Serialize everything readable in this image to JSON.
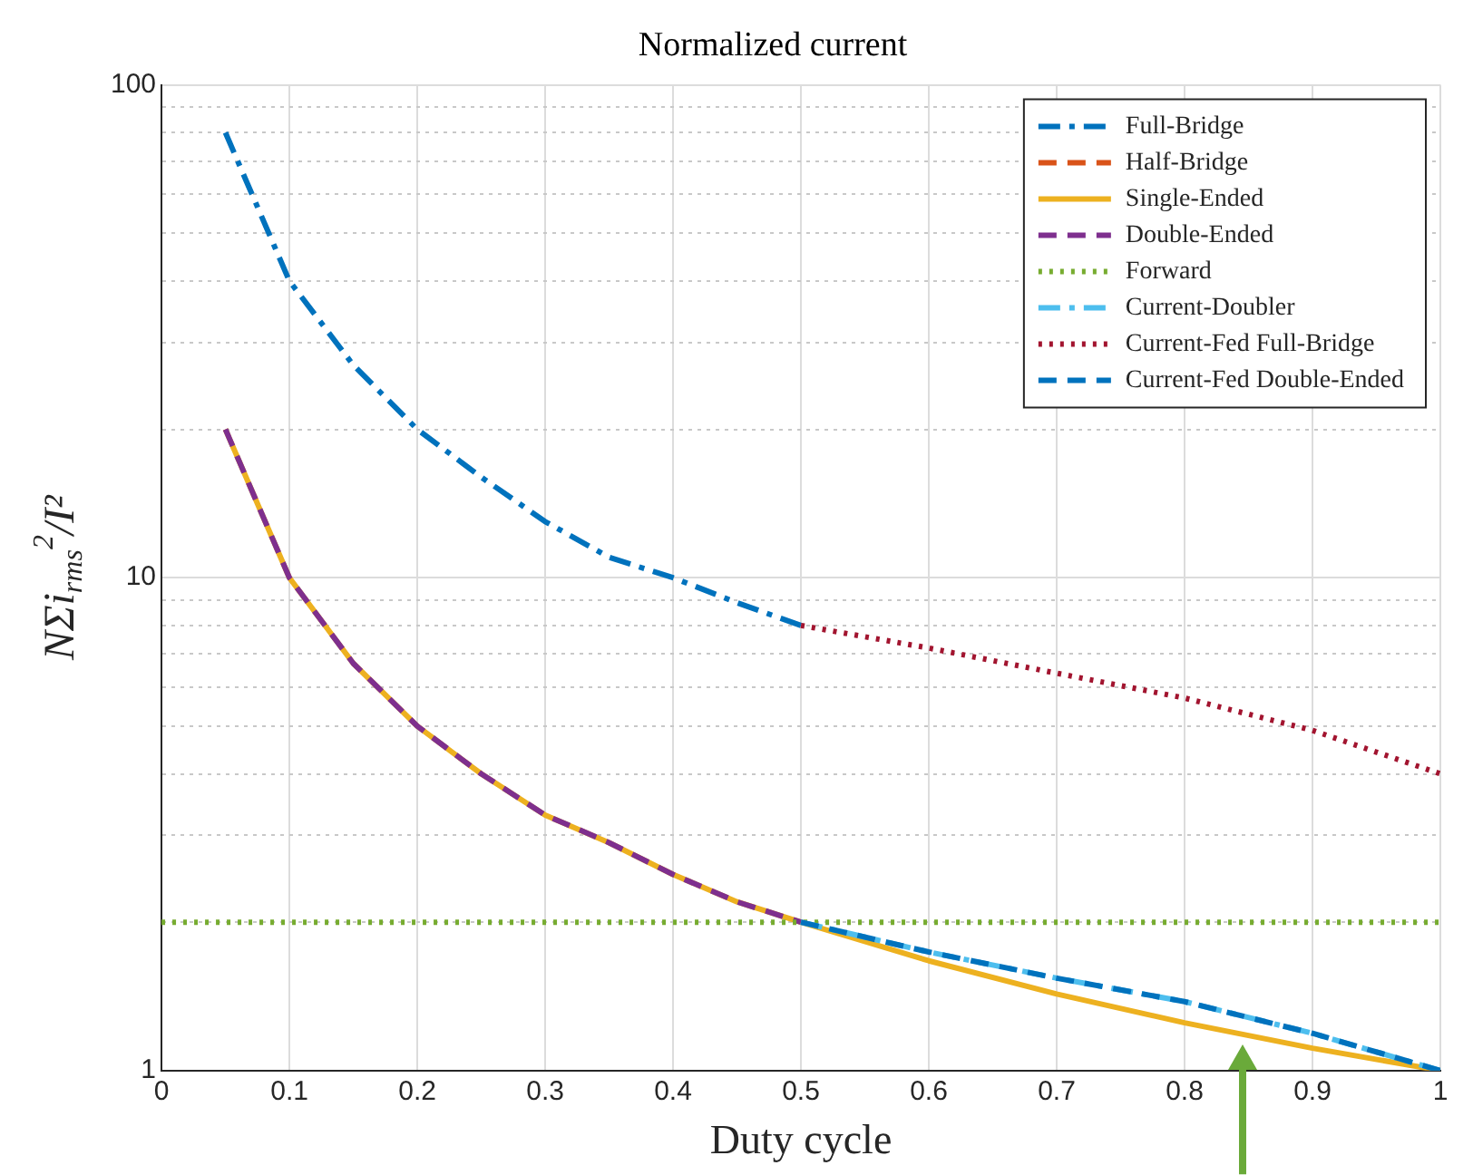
{
  "chart_data": {
    "type": "line",
    "title": "Normalized current",
    "xlabel": "Duty cycle",
    "ylabel": "NΣi$_{rms}$$^{2}$/I²",
    "xlim": [
      0,
      1
    ],
    "xticks": [
      0,
      0.1,
      0.2,
      0.3,
      0.4,
      0.5,
      0.6,
      0.7,
      0.8,
      0.9,
      1
    ],
    "log": "y",
    "ylim": [
      1,
      100
    ],
    "yticks": [
      1,
      {
        "value": 2,
        "label": null
      },
      {
        "value": 3,
        "label": null
      },
      {
        "value": 4,
        "label": null
      },
      {
        "value": 5,
        "label": null
      },
      {
        "value": 6,
        "label": null
      },
      {
        "value": 7,
        "label": null
      },
      {
        "value": 8,
        "label": null
      },
      {
        "value": 9,
        "label": null
      },
      10,
      {
        "value": 20,
        "label": null
      },
      {
        "value": 30,
        "label": null
      },
      {
        "value": 40,
        "label": null
      },
      {
        "value": 50,
        "label": null
      },
      {
        "value": 60,
        "label": null
      },
      {
        "value": 70,
        "label": null
      },
      {
        "value": 80,
        "label": null
      },
      {
        "value": 90,
        "label": null
      },
      100
    ],
    "grid": true,
    "legend": "top right",
    "marker": "none",
    "series": [
      {
        "name": "Full-Bridge",
        "color": "#0072bd",
        "line_style": "dashdot",
        "x": [
          0.05,
          0.1,
          0.15,
          0.2,
          0.25,
          0.3,
          0.35,
          0.4,
          0.45,
          0.5
        ],
        "values": [
          80,
          40,
          27,
          20,
          16,
          13,
          11,
          10,
          8.9,
          8
        ]
      },
      {
        "name": "Half-Bridge",
        "color": "#d95319",
        "line_style": "dashed"
      },
      {
        "name": "Single-Ended",
        "color": "#edb120",
        "line_style": "solid",
        "x": [
          0.05,
          0.1,
          0.15,
          0.2,
          0.25,
          0.3,
          0.35,
          0.4,
          0.45,
          0.5,
          0.6,
          0.7,
          0.8,
          0.9,
          1
        ],
        "values": [
          20,
          10,
          6.7,
          5,
          4,
          3.3,
          2.9,
          2.5,
          2.2,
          2,
          1.67,
          1.43,
          1.25,
          1.11,
          1
        ]
      },
      {
        "name": "Double-Ended",
        "color": "#7e2f8e",
        "line_style": "dashed",
        "x": [
          0.05,
          0.1,
          0.15,
          0.2,
          0.25,
          0.3,
          0.35,
          0.4,
          0.45,
          0.5
        ],
        "values": [
          20,
          10,
          6.7,
          5,
          4,
          3.3,
          2.9,
          2.5,
          2.2,
          2
        ]
      },
      {
        "name": "Forward",
        "color": "#77ac30",
        "line_style": "dotted",
        "x": [
          0,
          1
        ],
        "values": [
          2,
          2
        ]
      },
      {
        "name": "Current-Doubler",
        "color": "#4dbeee",
        "line_style": "dashdot",
        "x": [
          0.5,
          0.6,
          0.7,
          0.8,
          0.9,
          1
        ],
        "values": [
          2,
          1.74,
          1.54,
          1.38,
          1.19,
          1
        ]
      },
      {
        "name": "Current-Fed Full-Bridge",
        "color": "#a2142f",
        "line_style": "dotted",
        "x": [
          0.5,
          0.6,
          0.7,
          0.8,
          0.9,
          1
        ],
        "values": [
          8,
          7.2,
          6.4,
          5.7,
          4.9,
          4
        ]
      },
      {
        "name": "Current-Fed Double-Ended",
        "color": "#0072bd",
        "line_style": "dashed",
        "x": [
          0.5,
          0.6,
          0.7,
          0.8,
          0.9,
          1
        ],
        "values": [
          2,
          1.74,
          1.54,
          1.38,
          1.19,
          1
        ]
      }
    ]
  }
}
